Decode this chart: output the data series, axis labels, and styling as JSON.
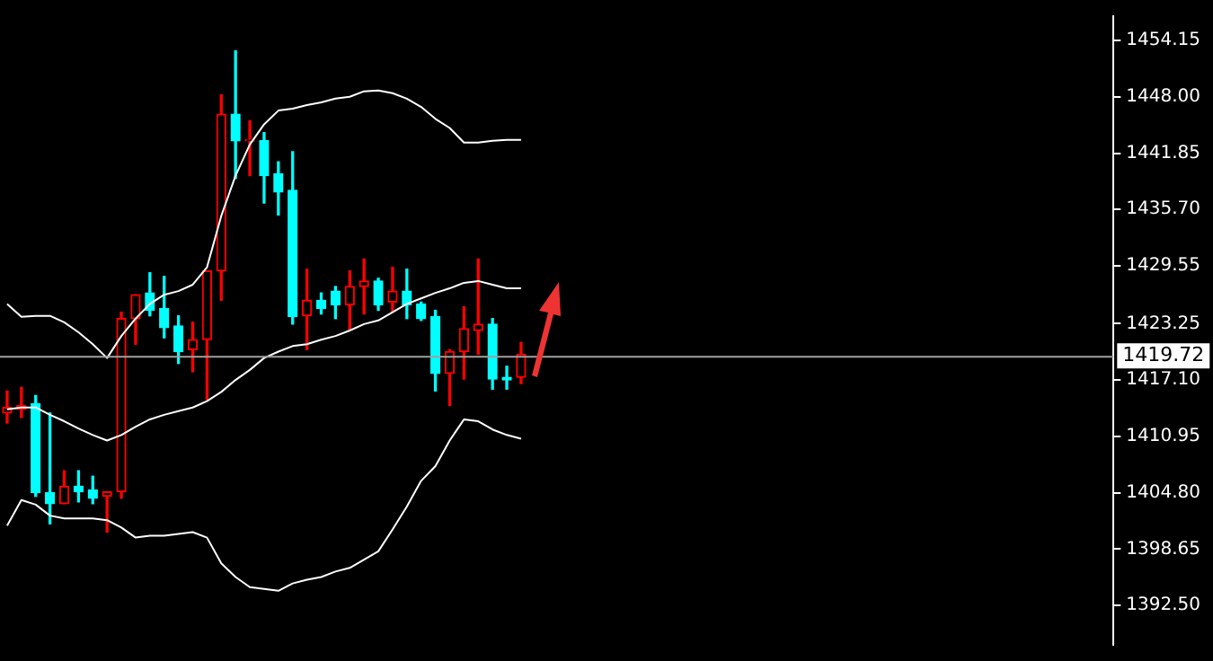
{
  "chart_data": {
    "type": "candlestick",
    "categories": [
      null,
      null,
      null,
      null,
      null,
      null,
      null,
      null,
      null,
      null,
      null,
      null,
      null,
      null,
      null,
      null,
      null,
      null,
      null,
      null,
      null,
      null,
      null,
      null,
      null,
      null,
      null,
      null,
      null,
      null,
      null,
      null,
      null,
      null,
      null,
      null,
      null,
      null,
      null,
      null,
      null,
      null,
      null,
      null,
      null,
      null,
      null,
      null,
      null,
      null,
      null,
      null,
      null,
      null,
      null,
      null,
      null,
      null,
      null,
      null,
      null,
      null,
      null,
      null,
      null,
      null,
      null,
      null,
      null,
      null,
      null,
      null,
      null,
      null,
      null,
      null,
      null,
      null
    ],
    "ohlc": [
      [
        1413.5,
        1415.9,
        1412.4,
        1414.1
      ],
      [
        1413.9,
        1416.3,
        1413.0,
        1414.3
      ],
      [
        1414.5,
        1415.4,
        1404.4,
        1404.8
      ],
      [
        1404.8,
        1413.5,
        1401.4,
        1403.6
      ],
      [
        1403.6,
        1407.2,
        1403.6,
        1405.5
      ],
      [
        1405.5,
        1407.2,
        1403.8,
        1404.9
      ],
      [
        1405.1,
        1406.6,
        1403.6,
        1404.2
      ],
      [
        1404.4,
        1404.9,
        1400.5,
        1404.9
      ],
      [
        1404.9,
        1424.5,
        1404.2,
        1423.8
      ],
      [
        1423.8,
        1426.4,
        1421.0,
        1426.4
      ],
      [
        1426.6,
        1428.8,
        1424.1,
        1424.7
      ],
      [
        1424.9,
        1428.4,
        1421.7,
        1422.8
      ],
      [
        1423.0,
        1424.1,
        1418.9,
        1420.2
      ],
      [
        1420.4,
        1423.4,
        1418.0,
        1421.5
      ],
      [
        1421.5,
        1429.0,
        1415.0,
        1429.0
      ],
      [
        1429.0,
        1448.2,
        1425.8,
        1446.1
      ],
      [
        1446.1,
        1453.0,
        1439.1,
        1443.2
      ],
      [
        1443.2,
        1445.4,
        1439.4,
        1443.3
      ],
      [
        1443.2,
        1444.1,
        1436.4,
        1439.4
      ],
      [
        1439.6,
        1440.9,
        1435.1,
        1437.6
      ],
      [
        1437.8,
        1442.0,
        1423.2,
        1424.0
      ],
      [
        1424.1,
        1429.2,
        1420.4,
        1425.8
      ],
      [
        1425.8,
        1426.6,
        1424.3,
        1424.9
      ],
      [
        1426.8,
        1427.3,
        1423.8,
        1425.3
      ],
      [
        1425.3,
        1429.0,
        1422.5,
        1427.3
      ],
      [
        1427.3,
        1430.3,
        1424.3,
        1427.9
      ],
      [
        1427.9,
        1428.2,
        1424.7,
        1425.3
      ],
      [
        1425.6,
        1429.4,
        1424.5,
        1426.8
      ],
      [
        1426.8,
        1429.2,
        1423.8,
        1425.3
      ],
      [
        1425.4,
        1425.6,
        1423.6,
        1423.8
      ],
      [
        1424.0,
        1424.7,
        1415.9,
        1417.8
      ],
      [
        1417.8,
        1420.4,
        1414.3,
        1420.2
      ],
      [
        1420.2,
        1425.1,
        1417.2,
        1422.7
      ],
      [
        1422.5,
        1430.3,
        1419.9,
        1423.2
      ],
      [
        1423.2,
        1423.8,
        1416.1,
        1417.2
      ],
      [
        1417.4,
        1418.6,
        1416.1,
        1417.1
      ],
      [
        1417.4,
        1421.2,
        1416.7,
        1419.9
      ],
      null,
      null,
      null,
      null,
      null,
      null,
      null,
      null,
      null,
      null,
      null,
      null,
      null,
      null,
      null,
      null,
      null,
      null,
      null,
      null,
      null,
      null,
      null,
      null,
      null,
      null,
      null,
      null,
      null,
      null,
      null,
      null,
      null,
      null,
      null,
      null,
      null,
      null,
      null,
      null,
      null
    ],
    "colors": [
      "#ff0000",
      "#ff0000",
      "#00ffff",
      "#00ffff",
      "#ff0000",
      "#00ffff",
      "#00ffff",
      "#ff0000",
      "#ff0000",
      "#ff0000",
      "#00ffff",
      "#00ffff",
      "#00ffff",
      "#ff0000",
      "#ff0000",
      "#ff0000",
      "#00ffff",
      "#ff0000",
      "#00ffff",
      "#00ffff",
      "#00ffff",
      "#ff0000",
      "#00ffff",
      "#00ffff",
      "#ff0000",
      "#ff0000",
      "#00ffff",
      "#ff0000",
      "#00ffff",
      "#00ffff",
      "#00ffff",
      "#ff0000",
      "#ff0000",
      "#ff0000",
      "#00ffff",
      "#00ffff",
      "#ff0000",
      null,
      null,
      null,
      null,
      null,
      null,
      null,
      null,
      null,
      null,
      null,
      null,
      null,
      null,
      null,
      null,
      null,
      null,
      null,
      null,
      null,
      null,
      null,
      null,
      null,
      null,
      null,
      null,
      null,
      null,
      null,
      null,
      null,
      null,
      null,
      null,
      null,
      null,
      null,
      null,
      null
    ],
    "series": [
      {
        "type": "line",
        "color": "#ffffff",
        "values": [
          1425.4,
          1424.0,
          1424.1,
          1424.1,
          1423.4,
          1422.3,
          1421.0,
          1419.5,
          1421.9,
          1423.8,
          1425.4,
          1426.4,
          1426.8,
          1427.5,
          1429.4,
          1435.0,
          1439.4,
          1442.8,
          1445.0,
          1446.5,
          1446.7,
          1447.1,
          1447.4,
          1447.8,
          1448.0,
          1448.6,
          1448.7,
          1448.4,
          1447.8,
          1446.9,
          1445.6,
          1444.6,
          1443.0,
          1443.0,
          1443.2,
          1443.3,
          1443.3,
          null,
          null,
          null,
          null,
          null,
          null,
          null,
          null,
          null,
          null,
          null,
          null,
          null,
          null,
          null,
          null,
          null,
          null,
          null,
          null,
          null,
          null,
          null,
          null,
          null,
          null,
          null,
          null,
          null,
          null,
          null,
          null,
          null,
          null,
          null,
          null,
          null,
          null,
          null,
          null,
          null
        ]
      },
      {
        "type": "line",
        "color": "#ffffff",
        "values": [
          1413.9,
          1414.1,
          1414.1,
          1413.3,
          1412.6,
          1411.8,
          1411.1,
          1410.5,
          1411.1,
          1412.0,
          1412.8,
          1413.3,
          1413.7,
          1414.1,
          1414.8,
          1415.8,
          1417.1,
          1418.2,
          1419.5,
          1420.2,
          1420.8,
          1421.0,
          1421.5,
          1421.9,
          1422.5,
          1423.2,
          1423.6,
          1424.5,
          1425.4,
          1426.0,
          1426.6,
          1427.1,
          1427.7,
          1427.9,
          1427.5,
          1427.1,
          1427.1,
          null,
          null,
          null,
          null,
          null,
          null,
          null,
          null,
          null,
          null,
          null,
          null,
          null,
          null,
          null,
          null,
          null,
          null,
          null,
          null,
          null,
          null,
          null,
          null,
          null,
          null,
          null,
          null,
          null,
          null,
          null,
          null,
          null,
          null,
          null,
          null,
          null,
          null,
          null,
          null,
          null
        ]
      },
      {
        "type": "line",
        "color": "#ffffff",
        "values": [
          1401.2,
          1404.0,
          1403.5,
          1402.3,
          1402.0,
          1402.0,
          1402.0,
          1401.8,
          1401.0,
          1399.9,
          1400.1,
          1400.1,
          1400.3,
          1400.5,
          1399.9,
          1397.1,
          1395.6,
          1394.5,
          1394.3,
          1394.1,
          1394.9,
          1395.3,
          1395.6,
          1396.2,
          1396.6,
          1397.5,
          1398.4,
          1400.8,
          1403.3,
          1406.1,
          1407.7,
          1410.5,
          1412.8,
          1412.6,
          1411.7,
          1411.1,
          1410.7,
          null,
          null,
          null,
          null,
          null,
          null,
          null,
          null,
          null,
          null,
          null,
          null,
          null,
          null,
          null,
          null,
          null,
          null,
          null,
          null,
          null,
          null,
          null,
          null,
          null,
          null,
          null,
          null,
          null,
          null,
          null,
          null,
          null,
          null,
          null,
          null,
          null,
          null,
          null,
          null,
          null
        ]
      }
    ],
    "ylim": [
      1388.2,
      1456.8
    ],
    "yticks": [
      1454.15,
      {
        "value": 1448,
        "label": "1448.00"
      },
      1441.85,
      {
        "value": 1435.7,
        "label": "1435.70"
      },
      1429.55,
      1423.25,
      {
        "value": 1417.1,
        "label": "1417.10"
      },
      1410.95,
      {
        "value": 1404.8,
        "label": "1404.80"
      },
      1398.65,
      {
        "value": 1392.5,
        "label": "1392.50"
      }
    ],
    "tick_labels": "y",
    "ref_lines": [
      {
        "axis": "y",
        "value": 1419.72,
        "label": "1419.72",
        "color": "#a0a0a0"
      }
    ],
    "grid": false,
    "legend": false
  }
}
